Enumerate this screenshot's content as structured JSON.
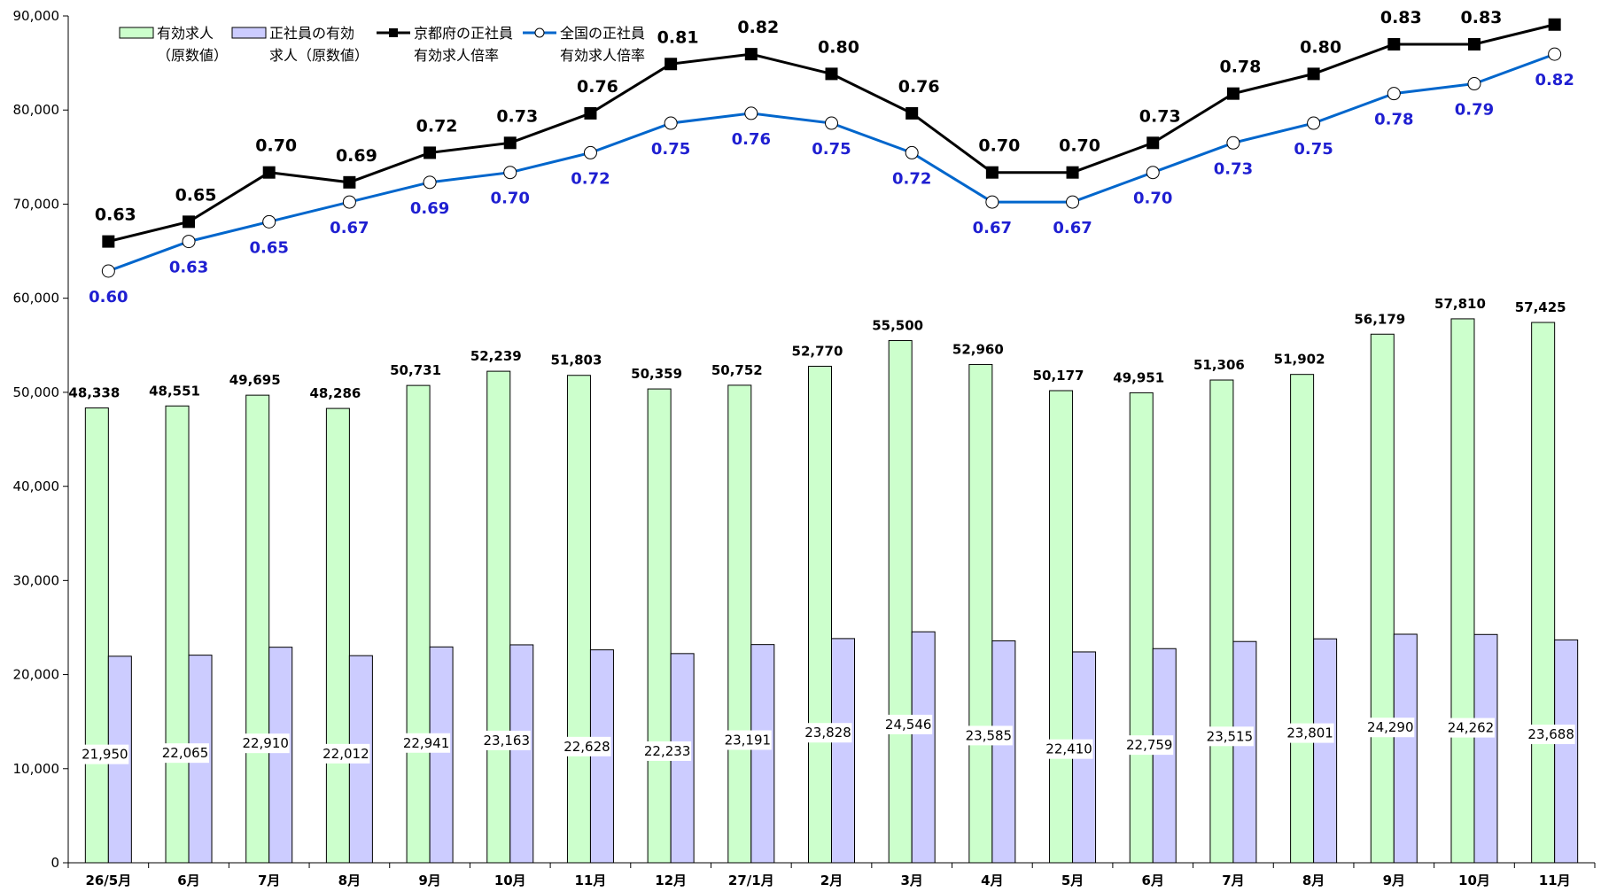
{
  "chart_data": {
    "type": "bar",
    "categories": [
      "26/5月",
      "6月",
      "7月",
      "8月",
      "9月",
      "10月",
      "11月",
      "12月",
      "27/1月",
      "2月",
      "3月",
      "4月",
      "5月",
      "6月",
      "7月",
      "8月",
      "9月",
      "10月",
      "11月"
    ],
    "ylim": [
      0,
      90000
    ],
    "y_ticks": [
      "0",
      "10,000",
      "20,000",
      "30,000",
      "40,000",
      "50,000",
      "60,000",
      "70,000",
      "80,000",
      "90,000"
    ],
    "ratio_range": [
      0.6,
      0.83
    ],
    "legend_position": "top-left",
    "series": [
      {
        "type": "bar",
        "name_lines": [
          "有効求人",
          "（原数値）"
        ],
        "color": "#ccffcc",
        "values": [
          48338,
          48551,
          49695,
          48286,
          50731,
          52239,
          51803,
          50359,
          50752,
          52770,
          55500,
          52960,
          50177,
          49951,
          51306,
          51902,
          56179,
          57810,
          57425
        ],
        "labels": [
          "48,338",
          "48,551",
          "49,695",
          "48,286",
          "50,731",
          "52,239",
          "51,803",
          "50,359",
          "50,752",
          "52,770",
          "55,500",
          "52,960",
          "50,177",
          "49,951",
          "51,306",
          "51,902",
          "56,179",
          "57,810",
          "57,425"
        ]
      },
      {
        "type": "bar",
        "name_lines": [
          "正社員の有効",
          "求人（原数値）"
        ],
        "color": "#ccccff",
        "values": [
          21950,
          22065,
          22910,
          22012,
          22941,
          23163,
          22628,
          22233,
          23191,
          23828,
          24546,
          23585,
          22410,
          22759,
          23515,
          23801,
          24290,
          24262,
          23688
        ],
        "labels": [
          "21,950",
          "22,065",
          "22,910",
          "22,012",
          "22,941",
          "23,163",
          "22,628",
          "22,233",
          "23,191",
          "23,828",
          "24,546",
          "23,585",
          "22,410",
          "22,759",
          "23,515",
          "23,801",
          "24,290",
          "24,262",
          "23,688"
        ]
      },
      {
        "type": "line",
        "name_lines": [
          "京都府の正社員",
          "有効求人倍率"
        ],
        "color": "#000000",
        "values": [
          0.63,
          0.65,
          0.7,
          0.69,
          0.72,
          0.73,
          0.76,
          0.81,
          0.82,
          0.8,
          0.76,
          0.7,
          0.7,
          0.73,
          0.78,
          0.8,
          0.83,
          0.83,
          0.85
        ],
        "labels": [
          "0.63",
          "0.65",
          "0.70",
          "0.69",
          "0.72",
          "0.73",
          "0.76",
          "0.81",
          "0.82",
          "0.80",
          "0.76",
          "0.70",
          "0.70",
          "0.73",
          "0.78",
          "0.80",
          "0.83",
          "0.83",
          ""
        ]
      },
      {
        "type": "line",
        "name_lines": [
          "全国の正社員",
          "有効求人倍率"
        ],
        "color": "#0066cc",
        "values": [
          0.6,
          0.63,
          0.65,
          0.67,
          0.69,
          0.7,
          0.72,
          0.75,
          0.76,
          0.75,
          0.72,
          0.67,
          0.67,
          0.7,
          0.73,
          0.75,
          0.78,
          0.79,
          0.82
        ],
        "labels": [
          "0.60",
          "0.63",
          "0.65",
          "0.67",
          "0.69",
          "0.70",
          "0.72",
          "0.75",
          "0.76",
          "0.75",
          "0.72",
          "0.67",
          "0.67",
          "0.70",
          "0.73",
          "0.75",
          "0.78",
          "0.79",
          "0.82"
        ]
      }
    ]
  }
}
